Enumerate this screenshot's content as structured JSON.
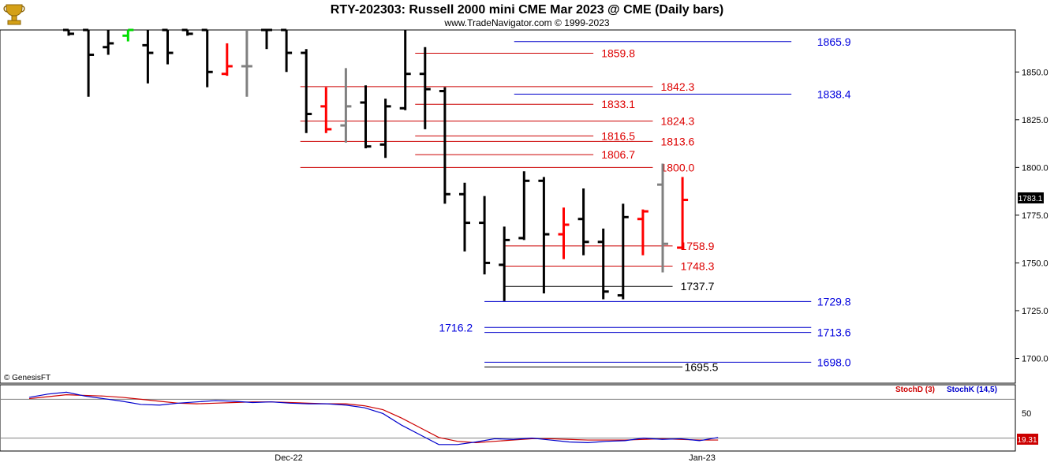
{
  "header": {
    "title": "RTY-202303:  Russell 2000 mini CME Mar 2023 @ CME  (Daily bars)",
    "subtitle": "www.TradeNavigator.com © 1999-2023",
    "logo_icon": "gold-trophy-logo-icon"
  },
  "copyright": "© GenesisFT",
  "last_price_label": "1783.1",
  "colors": {
    "up": "#ff0000",
    "down": "#000000",
    "neutral": "#808080",
    "bright": "#00dd00",
    "blue_line": "#0000cc",
    "red_line": "#cc0000",
    "black_line": "#000000",
    "stoch_d": "#cc0000",
    "stoch_k": "#0000cc",
    "price_tag_bg": "#000000",
    "stoch_tag_bg": "#cc0000"
  },
  "chart_data": [
    {
      "type": "ohlc",
      "title": "RTY-202303:  Russell 2000 mini CME Mar 2023 @ CME  (Daily bars)",
      "x_labels": [
        "Dec-22",
        "Jan-23"
      ],
      "ylim": [
        1687,
        1872
      ],
      "y_ticks": [
        1700.0,
        1725.0,
        1750.0,
        1775.0,
        1800.0,
        1825.0,
        1850.0
      ],
      "last_value": 1783.1,
      "bars": [
        {
          "o": 1872,
          "h": 1872,
          "l": 1869,
          "c": 1870,
          "color": "down"
        },
        {
          "o": 1872,
          "h": 1872,
          "l": 1837,
          "c": 1859,
          "color": "down"
        },
        {
          "o": 1863,
          "h": 1872,
          "l": 1859,
          "c": 1865,
          "color": "down"
        },
        {
          "o": 1869,
          "h": 1872,
          "l": 1866,
          "c": 1872,
          "color": "bright"
        },
        {
          "o": 1864,
          "h": 1872,
          "l": 1844,
          "c": 1860,
          "color": "down"
        },
        {
          "o": 1872,
          "h": 1872,
          "l": 1854,
          "c": 1860,
          "color": "down"
        },
        {
          "o": 1872,
          "h": 1872,
          "l": 1869,
          "c": 1870,
          "color": "down"
        },
        {
          "o": 1872,
          "h": 1872,
          "l": 1842,
          "c": 1850,
          "color": "down"
        },
        {
          "o": 1849,
          "h": 1865,
          "l": 1848,
          "c": 1853,
          "color": "up"
        },
        {
          "o": 1853,
          "h": 1872,
          "l": 1837,
          "c": 1853,
          "color": "neutral"
        },
        {
          "o": 1872,
          "h": 1872,
          "l": 1862,
          "c": 1872,
          "color": "down"
        },
        {
          "o": 1872,
          "h": 1872,
          "l": 1850,
          "c": 1860,
          "color": "down"
        },
        {
          "o": 1860,
          "h": 1862,
          "l": 1818,
          "c": 1828,
          "color": "down"
        },
        {
          "o": 1832,
          "h": 1842,
          "l": 1818,
          "c": 1820,
          "color": "up"
        },
        {
          "o": 1822,
          "h": 1852,
          "l": 1813,
          "c": 1832,
          "color": "neutral"
        },
        {
          "o": 1834,
          "h": 1843,
          "l": 1810,
          "c": 1811,
          "color": "down"
        },
        {
          "o": 1812,
          "h": 1836,
          "l": 1805,
          "c": 1832,
          "color": "down"
        },
        {
          "o": 1831,
          "h": 1872,
          "l": 1830,
          "c": 1849,
          "color": "down"
        },
        {
          "o": 1849,
          "h": 1863,
          "l": 1820,
          "c": 1841,
          "color": "down"
        },
        {
          "o": 1840,
          "h": 1842,
          "l": 1781,
          "c": 1786,
          "color": "down"
        },
        {
          "o": 1786,
          "h": 1792,
          "l": 1756,
          "c": 1771,
          "color": "down"
        },
        {
          "o": 1771,
          "h": 1785,
          "l": 1744,
          "c": 1750,
          "color": "down"
        },
        {
          "o": 1749,
          "h": 1769,
          "l": 1730,
          "c": 1762,
          "color": "down"
        },
        {
          "o": 1763,
          "h": 1798,
          "l": 1762,
          "c": 1793,
          "color": "down"
        },
        {
          "o": 1793,
          "h": 1795,
          "l": 1734,
          "c": 1765,
          "color": "down"
        },
        {
          "o": 1765,
          "h": 1779,
          "l": 1752,
          "c": 1770,
          "color": "up"
        },
        {
          "o": 1773,
          "h": 1789,
          "l": 1754,
          "c": 1761,
          "color": "down"
        },
        {
          "o": 1761,
          "h": 1768,
          "l": 1731,
          "c": 1735,
          "color": "down"
        },
        {
          "o": 1733,
          "h": 1781,
          "l": 1731,
          "c": 1774,
          "color": "down"
        },
        {
          "o": 1773,
          "h": 1778,
          "l": 1754,
          "c": 1777,
          "color": "up"
        },
        {
          "o": 1791,
          "h": 1802,
          "l": 1745,
          "c": 1760,
          "color": "neutral"
        },
        {
          "o": 1758,
          "h": 1795,
          "l": 1757,
          "c": 1783,
          "color": "up"
        }
      ],
      "levels": [
        {
          "label": "1865.9",
          "value": 1865.9,
          "x1": 22.5,
          "x2": 36.5,
          "color": "blue",
          "text_at": 37.8
        },
        {
          "label": "1859.8",
          "value": 1859.8,
          "x1": 17.5,
          "x2": 26.5,
          "color": "red",
          "text_at": 26.9
        },
        {
          "label": "1842.3",
          "value": 1842.3,
          "x1": 11.7,
          "x2": 29.5,
          "color": "red",
          "text_at": 29.9
        },
        {
          "label": "1838.4",
          "value": 1838.4,
          "x1": 22.5,
          "x2": 36.5,
          "color": "blue",
          "text_at": 37.8
        },
        {
          "label": "1833.1",
          "value": 1833.1,
          "x1": 17.5,
          "x2": 26.5,
          "color": "red",
          "text_at": 26.9
        },
        {
          "label": "1824.3",
          "value": 1824.3,
          "x1": 11.7,
          "x2": 29.5,
          "color": "red",
          "text_at": 29.9
        },
        {
          "label": "1816.5",
          "value": 1816.5,
          "x1": 17.5,
          "x2": 26.5,
          "color": "red",
          "text_at": 26.9
        },
        {
          "label": "1813.6",
          "value": 1813.6,
          "x1": 11.7,
          "x2": 29.5,
          "color": "red",
          "text_at": 29.9
        },
        {
          "label": "1806.7",
          "value": 1806.7,
          "x1": 17.5,
          "x2": 26.5,
          "color": "red",
          "text_at": 26.9
        },
        {
          "label": "1800.0",
          "value": 1800.0,
          "x1": 11.7,
          "x2": 29.5,
          "color": "red",
          "text_at": 29.9
        },
        {
          "label": "1758.9",
          "value": 1758.9,
          "x1": 22.0,
          "x2": 30.5,
          "color": "red",
          "text_at": 30.9
        },
        {
          "label": "1748.3",
          "value": 1748.3,
          "x1": 22.0,
          "x2": 30.5,
          "color": "red",
          "text_at": 30.9
        },
        {
          "label": "1737.7",
          "value": 1737.7,
          "x1": 22.0,
          "x2": 30.5,
          "color": "black",
          "text_at": 30.9
        },
        {
          "label": "1729.8",
          "value": 1729.8,
          "x1": 21.0,
          "x2": 37.5,
          "color": "blue",
          "text_at": 37.8
        },
        {
          "label": "1716.2",
          "value": 1716.2,
          "x1": 21.0,
          "x2": 37.5,
          "color": "blue",
          "text_at": 18.7
        },
        {
          "label": "1713.6",
          "value": 1713.6,
          "x1": 21.0,
          "x2": 37.5,
          "color": "blue",
          "text_at": 37.8
        },
        {
          "label": "1698.0",
          "value": 1698.0,
          "x1": 21.0,
          "x2": 37.5,
          "color": "blue",
          "text_at": 37.8
        },
        {
          "label": "1695.5",
          "value": 1695.5,
          "x1": 21.0,
          "x2": 31.0,
          "color": "black",
          "text_at": 31.1
        }
      ]
    },
    {
      "type": "line",
      "title": "",
      "x_labels": [
        "Dec-22",
        "Jan-23"
      ],
      "ylim": [
        0,
        100
      ],
      "y_ticks": [
        50
      ],
      "reference_lines": [
        80,
        20
      ],
      "last_value_label": "19.31",
      "series": [
        {
          "name": "StochD (3)",
          "color": "red",
          "values": [
            81,
            84,
            87,
            86,
            85,
            83,
            80,
            77,
            74,
            73,
            74,
            75,
            76,
            76,
            75,
            74,
            73,
            73,
            70,
            64,
            51,
            36,
            21,
            15,
            13,
            15,
            17,
            19,
            19,
            18,
            17,
            17,
            17,
            18,
            19,
            18,
            17,
            17
          ]
        },
        {
          "name": "StochK (14,5)",
          "color": "blue",
          "values": [
            83,
            88,
            91,
            85,
            81,
            77,
            72,
            71,
            74,
            76,
            78,
            77,
            75,
            76,
            74,
            73,
            73,
            71,
            67,
            58,
            40,
            25,
            10,
            10,
            14,
            19,
            18,
            20,
            17,
            14,
            13,
            15,
            16,
            20,
            18,
            19,
            16,
            21
          ]
        }
      ]
    }
  ]
}
